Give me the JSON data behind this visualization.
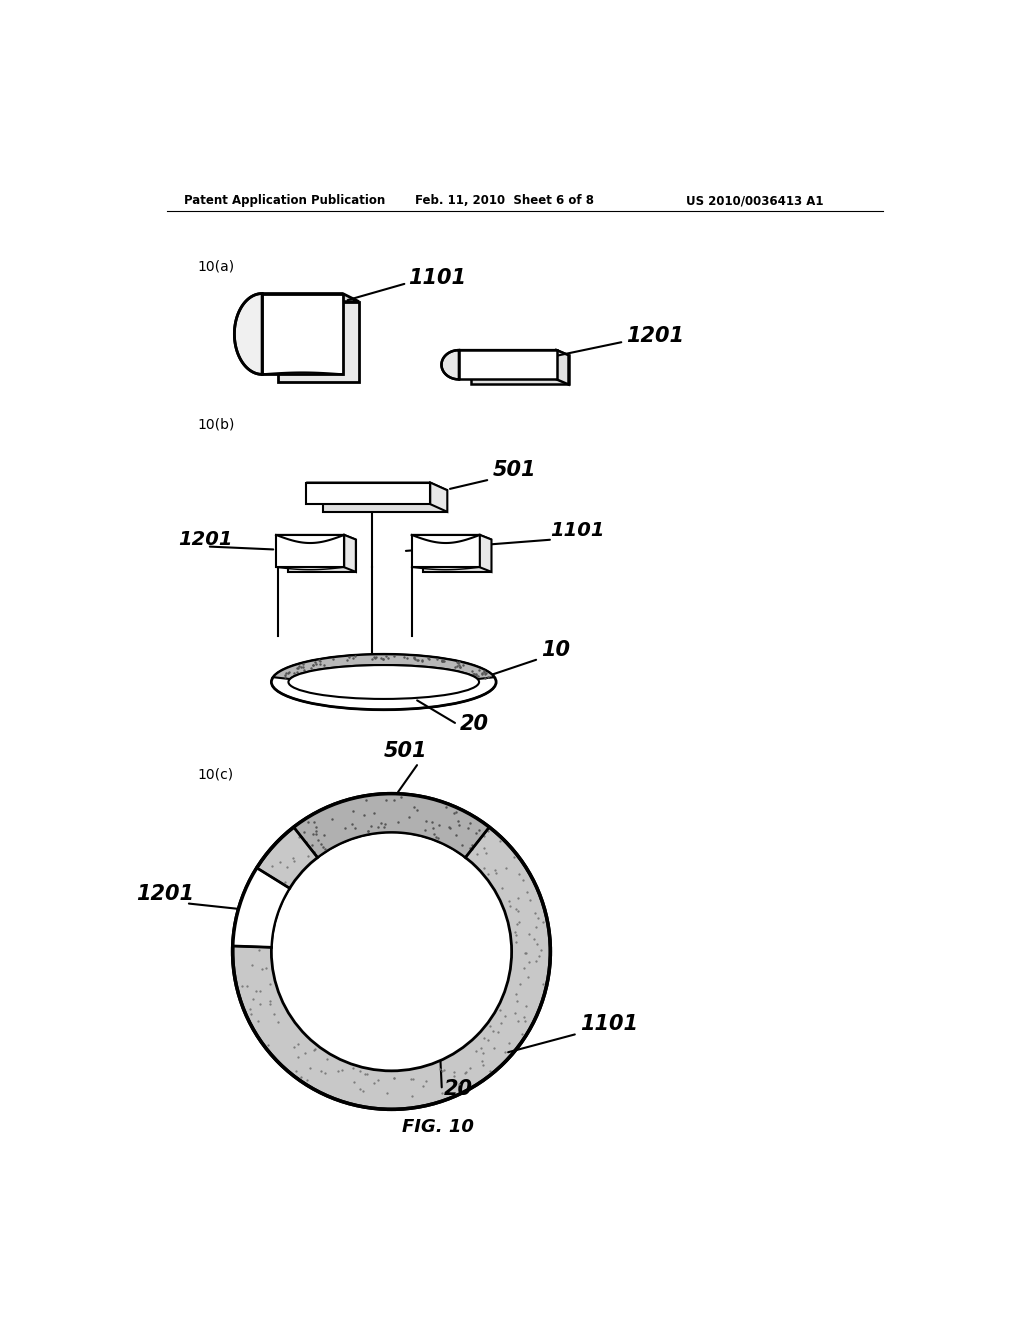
{
  "background_color": "#ffffff",
  "header_left": "Patent Application Publication",
  "header_mid": "Feb. 11, 2010  Sheet 6 of 8",
  "header_right": "US 2010/0036413 A1",
  "footer_label": "FIG. 10",
  "panel_a_label": "10(a)",
  "panel_b_label": "10(b)",
  "panel_c_label": "10(c)",
  "label_1101": "1101",
  "label_1201": "1201",
  "label_501": "501",
  "label_10": "10",
  "label_20": "20"
}
